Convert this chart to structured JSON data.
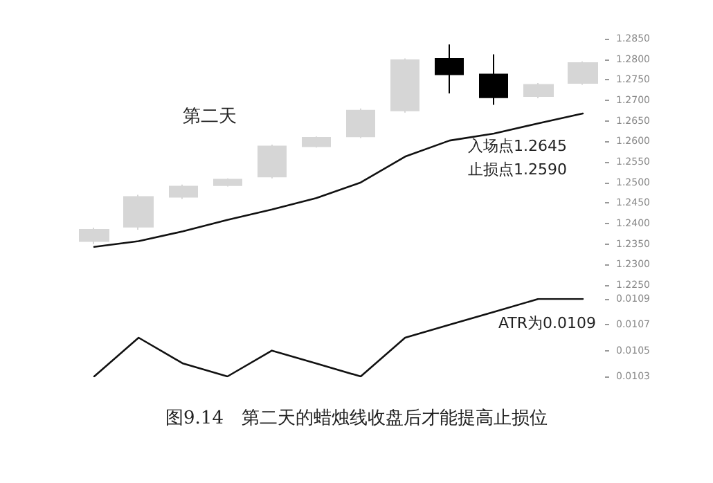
{
  "chart_data": [
    {
      "type": "candlestick",
      "categories": [
        null,
        null,
        null,
        null,
        null,
        null,
        null,
        null,
        null,
        null,
        null,
        null
      ],
      "ohlc": [
        [
          1.2357,
          1.239,
          1.235,
          1.2385
        ],
        [
          1.2392,
          1.247,
          1.2385,
          1.2465
        ],
        [
          1.2465,
          1.2495,
          1.246,
          1.249
        ],
        [
          1.2493,
          1.251,
          1.249,
          1.2507
        ],
        [
          1.2514,
          1.2592,
          1.251,
          1.2588
        ],
        [
          1.2588,
          1.2612,
          1.2585,
          1.2609
        ],
        [
          1.2612,
          1.268,
          1.2608,
          1.2675
        ],
        [
          1.2675,
          1.2802,
          1.267,
          1.2798
        ],
        [
          1.2801,
          1.2836,
          1.2717,
          1.2763
        ],
        [
          1.2763,
          1.2812,
          1.2689,
          1.2707
        ],
        [
          1.271,
          1.2742,
          1.2705,
          1.2738
        ],
        [
          1.2742,
          1.2795,
          1.2738,
          1.2791
        ]
      ],
      "colors": [
        "#d6d6d6",
        "#d6d6d6",
        "#d6d6d6",
        "#d6d6d6",
        "#d6d6d6",
        "#d6d6d6",
        "#d6d6d6",
        "#d6d6d6",
        "#000000",
        "#000000",
        "#d6d6d6",
        "#d6d6d6"
      ],
      "series": [
        {
          "type": "line",
          "color": "#111111",
          "values": [
            1.2343,
            1.2357,
            1.2381,
            1.2409,
            1.2434,
            1.2462,
            1.25,
            1.2563,
            1.2602,
            1.2619,
            1.2644,
            1.2668
          ]
        }
      ],
      "ylim": [
        1.225,
        1.285
      ],
      "yticks": [
        {
          "value": 1.225,
          "label": "1.2250"
        },
        {
          "value": 1.23,
          "label": "1.2300"
        },
        {
          "value": 1.235,
          "label": "1.2350"
        },
        {
          "value": 1.24,
          "label": "1.2400"
        },
        {
          "value": 1.245,
          "label": "1.2450"
        },
        {
          "value": 1.25,
          "label": "1.2500"
        },
        {
          "value": 1.255,
          "label": "1.2550"
        },
        {
          "value": 1.26,
          "label": "1.2600"
        },
        {
          "value": 1.265,
          "label": "1.2650"
        },
        {
          "value": 1.27,
          "label": "1.2700"
        },
        {
          "value": 1.275,
          "label": "1.2750"
        },
        {
          "value": 1.28,
          "label": "1.2800"
        },
        {
          "value": 1.285,
          "label": "1.2850"
        }
      ],
      "annotations": [
        "第二天",
        "入场点1.2645",
        "止损点1.2590"
      ],
      "grid": false,
      "tick_labels": "y"
    },
    {
      "type": "line",
      "title": "图9.14　第二天的蜡烛线收盘后才能提高止损位",
      "categories": [
        null,
        null,
        null,
        null,
        null,
        null,
        null,
        null,
        null,
        null,
        null,
        null
      ],
      "series": [
        {
          "color": "#111111",
          "values": [
            0.0103,
            0.0106,
            0.0104,
            0.0103,
            0.0105,
            0.0104,
            0.0103,
            0.0106,
            0.0107,
            0.0108,
            0.0109,
            0.0109
          ]
        }
      ],
      "ylim": [
        0.0103,
        0.0109
      ],
      "yticks": [
        0.0103,
        0.0105,
        0.0107,
        0.0109
      ],
      "annotations": [
        "ATR为0.0109"
      ],
      "grid": false,
      "tick_labels": "y",
      "marker": "none"
    }
  ]
}
